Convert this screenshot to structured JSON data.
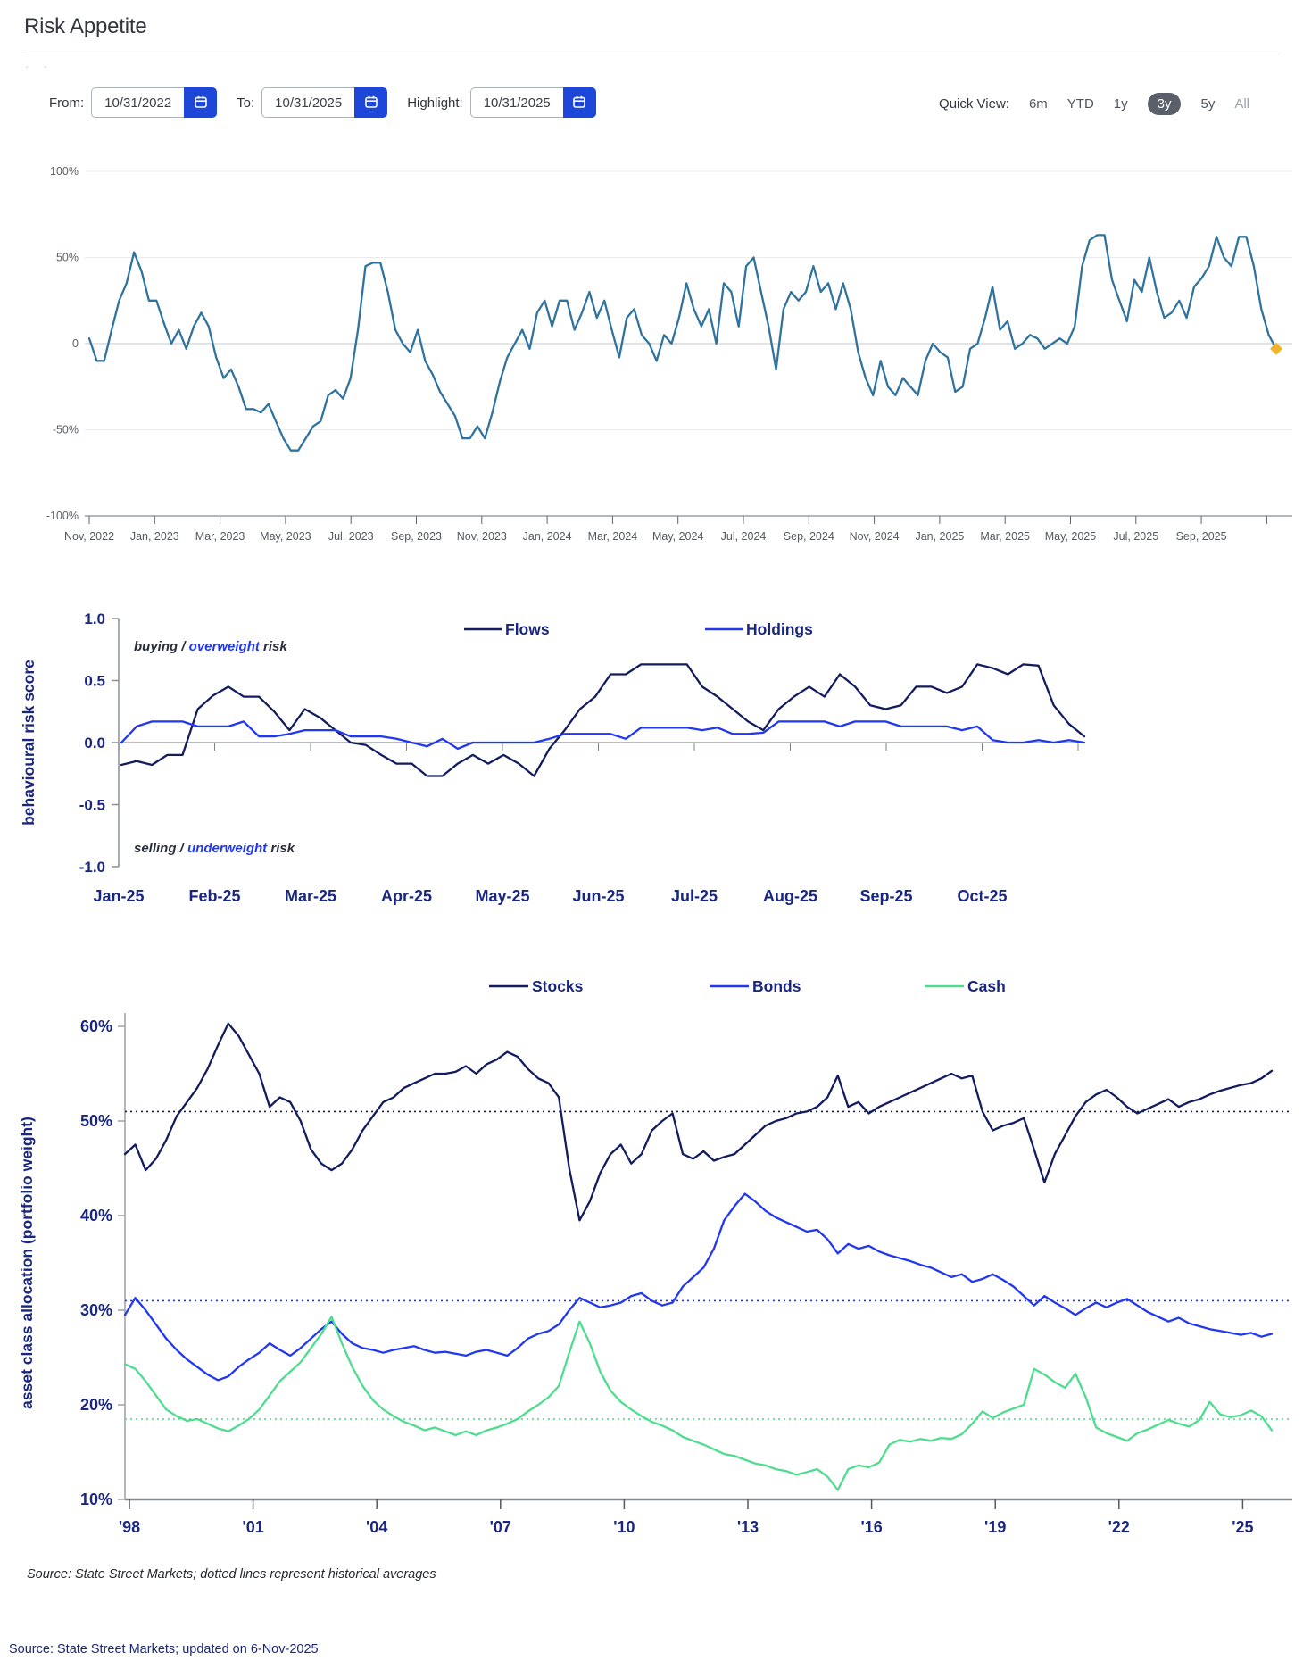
{
  "page": {
    "title": "Risk Appetite",
    "decorative_dots": "· ·"
  },
  "controls": {
    "from": {
      "label": "From:",
      "value": "10/31/2022"
    },
    "to": {
      "label": "To:",
      "value": "10/31/2025"
    },
    "highlight": {
      "label": "Highlight:",
      "value": "10/31/2025"
    },
    "quick_view": {
      "label": "Quick View:",
      "options": [
        "6m",
        "YTD",
        "1y",
        "3y",
        "5y",
        "All"
      ],
      "selected": "3y"
    }
  },
  "colors": {
    "calendar_button": "#1d47d9",
    "navy_text": "#1a2780",
    "chart1_line": "#2f739e",
    "flows": "#131c5e",
    "holdings": "#2137f0",
    "stocks": "#131c5e",
    "bonds": "#2137f0",
    "cash": "#4edd8e",
    "highlight_marker": "#f0b42c",
    "grid_light": "#ececee",
    "grid_zero": "#c4c7ca",
    "axis_gray": "#9aa0a5",
    "tick_text_gray": "#5d6267"
  },
  "sources": {
    "chart_note": "Source: State Street Markets; dotted lines represent historical averages",
    "page_note": "Source: State Street Markets; updated on 6-Nov-2025"
  },
  "chart_data": [
    {
      "id": "risk_appetite",
      "type": "line",
      "title": "Risk Appetite",
      "ylim": [
        -100,
        100
      ],
      "ytick_values": [
        100,
        50,
        0,
        -50,
        -100
      ],
      "ytick_labels": [
        "100%",
        "50%",
        "0",
        "-50%",
        "-100%"
      ],
      "xticklabels": [
        "Nov, 2022",
        "Jan, 2023",
        "Mar, 2023",
        "May, 2023",
        "Jul, 2023",
        "Sep, 2023",
        "Nov, 2023",
        "Jan, 2024",
        "Mar, 2024",
        "May, 2024",
        "Jul, 2024",
        "Sep, 2024",
        "Nov, 2024",
        "Jan, 2025",
        "Mar, 2025",
        "May, 2025",
        "Jul, 2025",
        "Sep, 2025"
      ],
      "end_marker": {
        "shape": "diamond",
        "date": "10/31/2025"
      },
      "series": [
        {
          "name": "risk appetite (%)",
          "values": [
            3,
            -10,
            -10,
            8,
            25,
            35,
            53,
            42,
            25,
            25,
            12,
            0,
            8,
            -3,
            10,
            18,
            10,
            -8,
            -20,
            -15,
            -25,
            -38,
            -38,
            -40,
            -35,
            -45,
            -55,
            -62,
            -62,
            -55,
            -48,
            -45,
            -30,
            -27,
            -32,
            -20,
            8,
            45,
            47,
            47,
            30,
            8,
            0,
            -5,
            8,
            -10,
            -18,
            -28,
            -35,
            -42,
            -55,
            -55,
            -48,
            -55,
            -40,
            -22,
            -8,
            0,
            8,
            -3,
            18,
            25,
            10,
            25,
            25,
            8,
            18,
            30,
            15,
            25,
            8,
            -8,
            15,
            20,
            5,
            0,
            -10,
            5,
            0,
            15,
            35,
            20,
            10,
            20,
            0,
            35,
            30,
            10,
            45,
            50,
            30,
            10,
            -15,
            20,
            30,
            25,
            30,
            45,
            30,
            35,
            20,
            35,
            20,
            -5,
            -20,
            -30,
            -10,
            -25,
            -30,
            -20,
            -25,
            -30,
            -10,
            0,
            -5,
            -8,
            -28,
            -25,
            -3,
            0,
            15,
            33,
            8,
            13,
            -3,
            0,
            5,
            3,
            -3,
            0,
            3,
            0,
            10,
            45,
            60,
            63,
            63,
            37,
            25,
            13,
            37,
            30,
            50,
            30,
            15,
            18,
            25,
            15,
            33,
            38,
            45,
            62,
            50,
            45,
            62,
            62,
            45,
            20,
            5,
            -3
          ]
        }
      ]
    },
    {
      "id": "behavioural_risk_score",
      "type": "line",
      "ylabel": "behavioural risk score",
      "ylim": [
        -1,
        1
      ],
      "ytick_values": [
        1,
        0.5,
        0,
        -0.5,
        -1
      ],
      "ytick_labels": [
        "1.0",
        "0.5",
        "0.0",
        "-0.5",
        "-1.0"
      ],
      "xticklabels": [
        "Jan-25",
        "Feb-25",
        "Mar-25",
        "Apr-25",
        "May-25",
        "Jun-25",
        "Jul-25",
        "Aug-25",
        "Sep-25",
        "Oct-25"
      ],
      "annotations": {
        "top": {
          "pre": "buying / ",
          "highlight": "overweight",
          "post": " risk"
        },
        "bottom": {
          "pre": "selling / ",
          "highlight": "underweight",
          "post": " risk"
        }
      },
      "series": [
        {
          "name": "Flows",
          "values": [
            -0.18,
            -0.15,
            -0.18,
            -0.1,
            -0.1,
            0.27,
            0.38,
            0.45,
            0.37,
            0.37,
            0.25,
            0.1,
            0.27,
            0.2,
            0.1,
            0.0,
            -0.02,
            -0.1,
            -0.17,
            -0.17,
            -0.27,
            -0.27,
            -0.17,
            -0.1,
            -0.17,
            -0.1,
            -0.17,
            -0.27,
            -0.05,
            0.1,
            0.27,
            0.37,
            0.55,
            0.55,
            0.63,
            0.63,
            0.63,
            0.63,
            0.45,
            0.37,
            0.27,
            0.17,
            0.1,
            0.27,
            0.37,
            0.45,
            0.37,
            0.55,
            0.45,
            0.3,
            0.27,
            0.3,
            0.45,
            0.45,
            0.4,
            0.45,
            0.63,
            0.6,
            0.55,
            0.63,
            0.62,
            0.3,
            0.15,
            0.05
          ]
        },
        {
          "name": "Holdings",
          "values": [
            0.0,
            0.13,
            0.17,
            0.17,
            0.17,
            0.13,
            0.13,
            0.13,
            0.17,
            0.05,
            0.05,
            0.07,
            0.1,
            0.1,
            0.1,
            0.05,
            0.05,
            0.05,
            0.03,
            0.0,
            -0.03,
            0.03,
            -0.05,
            0.0,
            0.0,
            0.0,
            0.0,
            0.0,
            0.03,
            0.07,
            0.07,
            0.07,
            0.07,
            0.03,
            0.12,
            0.12,
            0.12,
            0.12,
            0.1,
            0.12,
            0.07,
            0.07,
            0.08,
            0.17,
            0.17,
            0.17,
            0.17,
            0.13,
            0.17,
            0.17,
            0.17,
            0.13,
            0.13,
            0.13,
            0.13,
            0.1,
            0.13,
            0.02,
            0.0,
            0.0,
            0.02,
            0.0,
            0.02,
            0.0
          ]
        }
      ]
    },
    {
      "id": "asset_class_allocation",
      "type": "line",
      "ylabel": "asset class allocation (portfolio weight)",
      "ylim": [
        10,
        60
      ],
      "ytick_values": [
        60,
        50,
        40,
        30,
        20,
        10
      ],
      "ytick_labels": [
        "60%",
        "50%",
        "40%",
        "30%",
        "20%",
        "10%"
      ],
      "xticklabels": [
        "'98",
        "'01",
        "'04",
        "'07",
        "'10",
        "'13",
        "'16",
        "'19",
        "'22",
        "'25"
      ],
      "x_start": 1998,
      "x_step_years": 0.25,
      "dotted_lines_note": "historical averages",
      "series": [
        {
          "name": "Stocks",
          "average": 51,
          "values": [
            46.5,
            47.5,
            44.8,
            46,
            48,
            50.5,
            52,
            53.5,
            55.5,
            58,
            60.3,
            59,
            57,
            55,
            51.5,
            52.5,
            52,
            50,
            47,
            45.5,
            44.8,
            45.5,
            47,
            49,
            50.5,
            52,
            52.5,
            53.5,
            54,
            54.5,
            55,
            55,
            55.2,
            55.8,
            55,
            56,
            56.5,
            57.3,
            56.8,
            55.5,
            54.5,
            54,
            52.5,
            45,
            39.5,
            41.5,
            44.5,
            46.5,
            47.5,
            45.5,
            46.5,
            49,
            50,
            50.8,
            46.5,
            46,
            46.8,
            45.8,
            46.2,
            46.5,
            47.5,
            48.5,
            49.5,
            50,
            50.3,
            50.8,
            51,
            51.5,
            52.5,
            54.8,
            51.5,
            52,
            50.8,
            51.5,
            52,
            52.5,
            53,
            53.5,
            54,
            54.5,
            55,
            54.5,
            54.8,
            51,
            49,
            49.5,
            49.8,
            50.3,
            47,
            43.5,
            46.5,
            48.5,
            50.5,
            52,
            52.8,
            53.3,
            52.5,
            51.5,
            50.8,
            51.3,
            51.8,
            52.3,
            51.5,
            52,
            52.3,
            52.8,
            53.2,
            53.5,
            53.8,
            54,
            54.5,
            55.3
          ]
        },
        {
          "name": "Bonds",
          "average": 31,
          "values": [
            29.5,
            31.3,
            30,
            28.5,
            27,
            25.8,
            24.8,
            24,
            23.2,
            22.6,
            23,
            24,
            24.8,
            25.5,
            26.5,
            25.8,
            25.2,
            26,
            27,
            28,
            28.8,
            27.5,
            26.5,
            26,
            25.8,
            25.5,
            25.8,
            26,
            26.2,
            25.8,
            25.5,
            25.6,
            25.4,
            25.2,
            25.6,
            25.8,
            25.5,
            25.2,
            26,
            27,
            27.5,
            27.8,
            28.5,
            30,
            31.3,
            30.8,
            30.3,
            30.5,
            30.8,
            31.5,
            31.8,
            31,
            30.5,
            30.8,
            32.5,
            33.5,
            34.5,
            36.5,
            39.5,
            41,
            42.3,
            41.5,
            40.5,
            39.8,
            39.3,
            38.8,
            38.3,
            38.5,
            37.5,
            36,
            37,
            36.5,
            36.8,
            36.2,
            35.8,
            35.5,
            35.2,
            34.8,
            34.5,
            34,
            33.5,
            33.8,
            33,
            33.3,
            33.8,
            33.2,
            32.5,
            31.5,
            30.5,
            31.5,
            30.8,
            30.2,
            29.5,
            30.2,
            30.8,
            30.3,
            30.8,
            31.2,
            30.5,
            29.8,
            29.3,
            28.8,
            29.2,
            28.6,
            28.3,
            28,
            27.8,
            27.6,
            27.4,
            27.6,
            27.2,
            27.5
          ]
        },
        {
          "name": "Cash",
          "average": 18.5,
          "values": [
            24.3,
            23.8,
            22.5,
            21,
            19.5,
            18.8,
            18.3,
            18.5,
            18,
            17.5,
            17.2,
            17.8,
            18.5,
            19.5,
            21,
            22.5,
            23.5,
            24.5,
            26,
            27.5,
            29.3,
            26.5,
            24,
            22,
            20.5,
            19.5,
            18.8,
            18.2,
            17.8,
            17.3,
            17.6,
            17.2,
            16.8,
            17.2,
            16.8,
            17.3,
            17.6,
            18,
            18.5,
            19.3,
            20,
            20.8,
            22,
            25.5,
            28.8,
            26.5,
            23.5,
            21.5,
            20.3,
            19.5,
            18.8,
            18.2,
            17.8,
            17.3,
            16.6,
            16.2,
            15.8,
            15.3,
            14.8,
            14.6,
            14.2,
            13.8,
            13.6,
            13.2,
            13,
            12.6,
            12.9,
            13.2,
            12.4,
            11,
            13.2,
            13.6,
            13.4,
            13.9,
            15.8,
            16.3,
            16.1,
            16.4,
            16.2,
            16.5,
            16.4,
            16.9,
            18,
            19.3,
            18.6,
            19.2,
            19.6,
            20,
            23.8,
            23.2,
            22.4,
            21.8,
            23.3,
            20.8,
            17.6,
            17,
            16.6,
            16.2,
            17,
            17.4,
            17.9,
            18.4,
            18,
            17.7,
            18.4,
            20.3,
            19,
            18.7,
            18.9,
            19.4,
            18.8,
            17.3
          ]
        }
      ]
    }
  ]
}
